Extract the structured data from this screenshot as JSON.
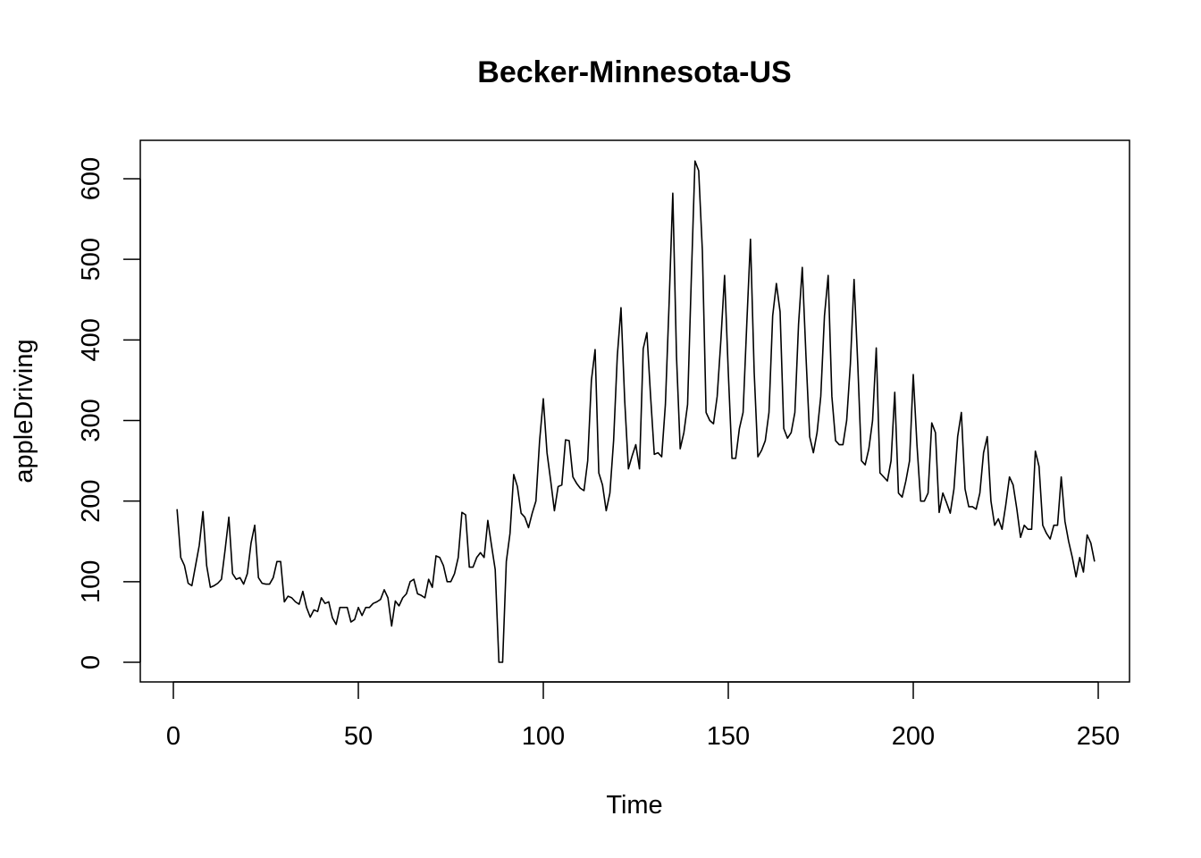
{
  "chart_data": {
    "type": "line",
    "title": "Becker-Minnesota-US",
    "xlabel": "Time",
    "ylabel": "appleDriving",
    "xlim": [
      1,
      248
    ],
    "ylim": [
      0,
      622
    ],
    "x_ticks": [
      0,
      50,
      100,
      150,
      200,
      250
    ],
    "y_ticks": [
      0,
      100,
      200,
      300,
      400,
      500,
      600
    ],
    "grid": false,
    "legend": "none",
    "line_color": "#000000",
    "series": [
      {
        "x_start": 1,
        "values": [
          190,
          130,
          120,
          98,
          95,
          120,
          145,
          187,
          120,
          93,
          95,
          98,
          103,
          140,
          180,
          110,
          103,
          105,
          97,
          110,
          148,
          170,
          105,
          98,
          97,
          97,
          105,
          125,
          125,
          75,
          82,
          80,
          75,
          72,
          88,
          68,
          56,
          65,
          63,
          80,
          73,
          75,
          55,
          47,
          68,
          68,
          68,
          50,
          53,
          68,
          58,
          68,
          68,
          73,
          75,
          78,
          90,
          80,
          45,
          76,
          70,
          80,
          85,
          100,
          103,
          85,
          83,
          80,
          103,
          93,
          132,
          130,
          120,
          100,
          100,
          110,
          130,
          186,
          183,
          118,
          118,
          130,
          136,
          130,
          176,
          145,
          115,
          0,
          0,
          125,
          160,
          233,
          218,
          185,
          180,
          167,
          185,
          200,
          275,
          327,
          260,
          225,
          188,
          218,
          220,
          276,
          275,
          230,
          222,
          216,
          213,
          250,
          350,
          388,
          235,
          220,
          188,
          210,
          275,
          380,
          440,
          325,
          240,
          256,
          270,
          240,
          389,
          409,
          330,
          258,
          260,
          255,
          320,
          445,
          582,
          380,
          265,
          285,
          320,
          475,
          622,
          610,
          510,
          310,
          300,
          296,
          330,
          400,
          480,
          360,
          253,
          253,
          290,
          310,
          420,
          525,
          360,
          255,
          263,
          275,
          310,
          430,
          470,
          435,
          290,
          278,
          285,
          310,
          420,
          490,
          380,
          280,
          260,
          285,
          330,
          430,
          480,
          330,
          275,
          270,
          270,
          300,
          370,
          475,
          370,
          250,
          245,
          265,
          300,
          390,
          235,
          230,
          225,
          250,
          335,
          210,
          205,
          225,
          250,
          357,
          270,
          200,
          200,
          210,
          297,
          285,
          186,
          210,
          198,
          185,
          215,
          280,
          310,
          215,
          193,
          193,
          190,
          210,
          260,
          280,
          200,
          170,
          178,
          165,
          195,
          230,
          220,
          190,
          155,
          170,
          165,
          165,
          262,
          243,
          170,
          160,
          153,
          170,
          170,
          230,
          175,
          150,
          130,
          106,
          130,
          112,
          158,
          148,
          125
        ]
      }
    ]
  }
}
